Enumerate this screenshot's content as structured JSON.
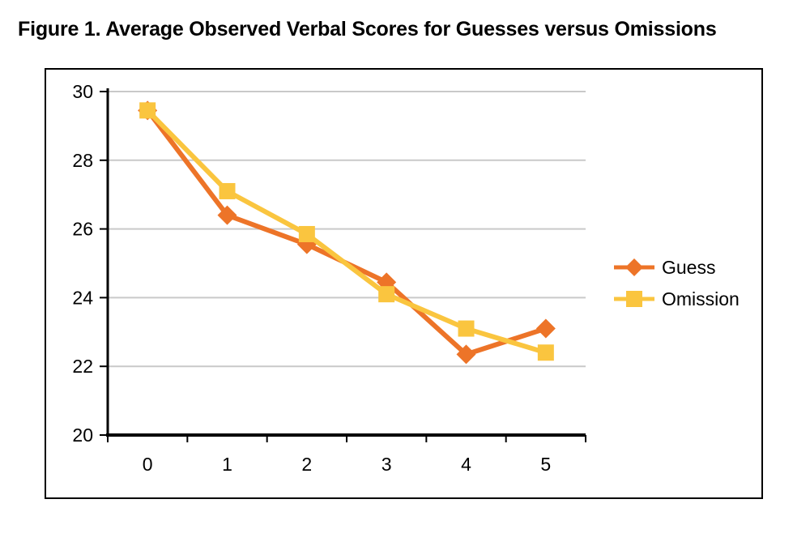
{
  "title": "Figure 1. Average Observed Verbal Scores for Guesses versus Omissions",
  "chart_data": {
    "type": "line",
    "title": "Figure 1. Average Observed Verbal Scores for Guesses versus Omissions",
    "categories": [
      "0",
      "1",
      "2",
      "3",
      "4",
      "5"
    ],
    "series": [
      {
        "name": "Guess",
        "marker": "diamond",
        "color": "#ED7428",
        "values": [
          29.45,
          26.4,
          25.55,
          24.45,
          22.35,
          23.1
        ]
      },
      {
        "name": "Omission",
        "marker": "square",
        "color": "#FAC53F",
        "values": [
          29.45,
          27.1,
          25.85,
          24.1,
          23.1,
          22.4
        ]
      }
    ],
    "xlabel": "",
    "ylabel": "",
    "ylim": [
      20,
      30
    ],
    "y_ticks": [
      20,
      22,
      24,
      26,
      28,
      30
    ],
    "grid": true,
    "legend_position": "right",
    "gridline_color": "#C9C9C9",
    "axis_color": "#000000",
    "text_color": "#000000",
    "plot_background": "#FFFFFF"
  }
}
